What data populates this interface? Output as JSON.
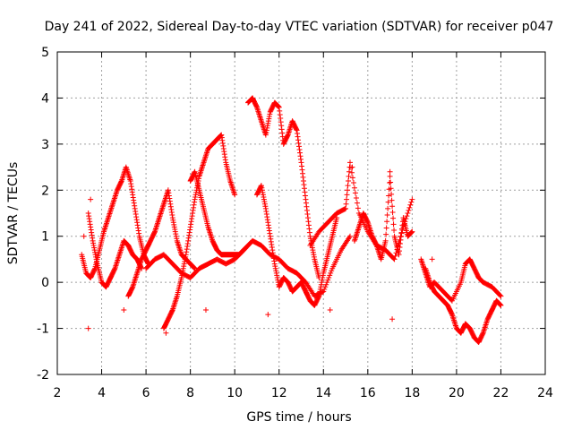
{
  "chart_data": {
    "type": "scatter",
    "title": "Day 241 of 2022, Sidereal Day-to-day VTEC variation (SDTVAR) for receiver p047",
    "xlabel": "GPS time / hours",
    "ylabel": "SDTVAR / TECUs",
    "xlim": [
      2,
      24
    ],
    "ylim": [
      -2,
      5
    ],
    "xticks": [
      2,
      4,
      6,
      8,
      10,
      12,
      14,
      16,
      18,
      20,
      22,
      24
    ],
    "yticks": [
      -2,
      -1,
      0,
      1,
      2,
      3,
      4,
      5
    ],
    "grid": true,
    "marker": "+",
    "series": [
      {
        "name": "trace-a",
        "color": "#ff0000",
        "x": [
          3.1,
          3.3,
          3.5,
          3.7,
          3.9,
          4.1,
          4.3,
          4.5,
          4.7,
          4.9,
          5.1,
          5.3,
          5.5,
          5.7,
          5.9,
          6.1
        ],
        "y": [
          0.6,
          0.2,
          0.1,
          0.3,
          0.7,
          1.1,
          1.4,
          1.7,
          2.0,
          2.2,
          2.5,
          2.2,
          1.6,
          1.0,
          0.6,
          0.4
        ]
      },
      {
        "name": "trace-b",
        "color": "#ff0000",
        "x": [
          3.4,
          3.6,
          3.8,
          4.0,
          4.2,
          4.4,
          4.6,
          4.8,
          5.0,
          5.2,
          5.4,
          5.6,
          5.8
        ],
        "y": [
          1.5,
          0.9,
          0.4,
          0.0,
          -0.1,
          0.1,
          0.3,
          0.6,
          0.9,
          0.8,
          0.6,
          0.5,
          0.3
        ]
      },
      {
        "name": "trace-c",
        "color": "#ff0000",
        "x": [
          5.2,
          5.4,
          5.6,
          5.8,
          6.0,
          6.2,
          6.4,
          6.6,
          6.8,
          7.0,
          7.2,
          7.4,
          7.6,
          7.8,
          8.0,
          8.2
        ],
        "y": [
          -0.3,
          -0.1,
          0.2,
          0.5,
          0.7,
          0.9,
          1.1,
          1.4,
          1.7,
          2.0,
          1.4,
          0.9,
          0.6,
          0.5,
          0.4,
          0.3
        ]
      },
      {
        "name": "trace-d",
        "color": "#ff0000",
        "x": [
          6.0,
          6.4,
          6.8,
          7.2,
          7.6,
          8.0,
          8.4,
          8.8,
          9.2,
          9.6,
          10.0,
          10.4
        ],
        "y": [
          0.3,
          0.5,
          0.6,
          0.4,
          0.2,
          0.1,
          0.3,
          0.4,
          0.5,
          0.4,
          0.5,
          0.7
        ]
      },
      {
        "name": "trace-e",
        "color": "#ff0000",
        "x": [
          6.8,
          7.0,
          7.2,
          7.4,
          7.6,
          7.8,
          8.0,
          8.2,
          8.4,
          8.6,
          8.8,
          9.0,
          9.2,
          9.4,
          9.6,
          9.8,
          10.0
        ],
        "y": [
          -1.0,
          -0.8,
          -0.6,
          -0.3,
          0.1,
          0.6,
          1.2,
          1.8,
          2.3,
          2.6,
          2.9,
          3.0,
          3.1,
          3.2,
          2.6,
          2.2,
          1.9
        ]
      },
      {
        "name": "trace-f",
        "color": "#ff0000",
        "x": [
          8.0,
          8.2,
          8.4,
          8.6,
          8.8,
          9.0,
          9.2,
          9.4,
          9.6,
          9.8,
          10.0,
          10.2,
          10.4,
          10.6
        ],
        "y": [
          2.2,
          2.4,
          2.0,
          1.6,
          1.2,
          0.9,
          0.7,
          0.6,
          0.6,
          0.6,
          0.6,
          0.6,
          0.7,
          0.8
        ]
      },
      {
        "name": "trace-g",
        "color": "#ff0000",
        "x": [
          10.6,
          10.8,
          11.0,
          11.2,
          11.4,
          11.6,
          11.8,
          12.0,
          12.2,
          12.4,
          12.6,
          12.8,
          13.0,
          13.2,
          13.4,
          13.6,
          13.8
        ],
        "y": [
          3.9,
          4.0,
          3.8,
          3.5,
          3.2,
          3.7,
          3.9,
          3.8,
          3.0,
          3.2,
          3.5,
          3.3,
          2.6,
          1.8,
          1.0,
          0.5,
          0.1
        ]
      },
      {
        "name": "trace-h",
        "color": "#ff0000",
        "x": [
          10.4,
          10.8,
          11.2,
          11.6,
          12.0,
          12.4,
          12.8,
          13.2,
          13.6,
          14.0,
          14.4,
          14.8,
          15.2
        ],
        "y": [
          0.7,
          0.9,
          0.8,
          0.6,
          0.5,
          0.3,
          0.2,
          0.0,
          -0.3,
          -0.2,
          0.3,
          0.7,
          1.0
        ]
      },
      {
        "name": "trace-i",
        "color": "#ff0000",
        "x": [
          11.0,
          11.2,
          11.4,
          11.6,
          11.8,
          12.0,
          12.2,
          12.4,
          12.6,
          12.8,
          13.0,
          13.2,
          13.4,
          13.6,
          13.8,
          14.0,
          14.2,
          14.4,
          14.6
        ],
        "y": [
          1.9,
          2.1,
          1.6,
          1.0,
          0.4,
          -0.1,
          0.1,
          0.0,
          -0.2,
          -0.1,
          0.0,
          -0.2,
          -0.4,
          -0.5,
          -0.3,
          0.2,
          0.6,
          1.0,
          1.4
        ]
      },
      {
        "name": "trace-j",
        "color": "#ff0000",
        "x": [
          13.4,
          13.8,
          14.2,
          14.6,
          15.0,
          15.2,
          15.6,
          16.0,
          16.4,
          16.8,
          17.2,
          17.6,
          18.0
        ],
        "y": [
          0.8,
          1.1,
          1.3,
          1.5,
          1.6,
          2.6,
          1.5,
          1.1,
          0.8,
          0.7,
          0.5,
          1.2,
          1.8
        ]
      },
      {
        "name": "trace-k",
        "color": "#ff0000",
        "x": [
          15.4,
          15.6,
          15.8,
          16.0,
          16.2,
          16.4,
          16.6,
          16.8,
          17.0,
          17.2,
          17.4,
          17.6,
          17.8,
          18.0
        ],
        "y": [
          0.9,
          1.2,
          1.5,
          1.3,
          1.0,
          0.8,
          0.5,
          0.9,
          2.3,
          1.0,
          0.6,
          1.4,
          1.0,
          1.1
        ]
      },
      {
        "name": "trace-l",
        "color": "#ff0000",
        "x": [
          18.6,
          18.8,
          19.0,
          19.2,
          19.4,
          19.6,
          19.8,
          20.0,
          20.2,
          20.4,
          20.6,
          20.8,
          21.0,
          21.2,
          21.4,
          21.6,
          21.8,
          22.0
        ],
        "y": [
          0.3,
          0.0,
          -0.2,
          -0.3,
          -0.4,
          -0.5,
          -0.7,
          -1.0,
          -1.1,
          -0.9,
          -1.0,
          -1.2,
          -1.3,
          -1.1,
          -0.8,
          -0.6,
          -0.4,
          -0.5
        ]
      },
      {
        "name": "trace-m",
        "color": "#ff0000",
        "x": [
          18.4,
          18.6,
          18.8,
          19.0,
          19.4,
          19.8,
          20.2,
          20.4,
          20.6,
          20.8,
          21.0,
          21.2,
          21.6,
          22.0
        ],
        "y": [
          0.5,
          0.2,
          -0.1,
          0.0,
          -0.2,
          -0.4,
          0.0,
          0.4,
          0.5,
          0.3,
          0.1,
          0.0,
          -0.1,
          -0.3
        ]
      },
      {
        "name": "outliers",
        "color": "#ff0000",
        "x": [
          3.4,
          3.5,
          3.2,
          5.0,
          6.9,
          8.7,
          11.5,
          14.3,
          15.3,
          17.1,
          17.0,
          18.9
        ],
        "y": [
          -1.0,
          1.8,
          1.0,
          -0.6,
          -1.1,
          -0.6,
          -0.7,
          -0.6,
          2.5,
          -0.8,
          2.4,
          0.5
        ]
      }
    ]
  }
}
